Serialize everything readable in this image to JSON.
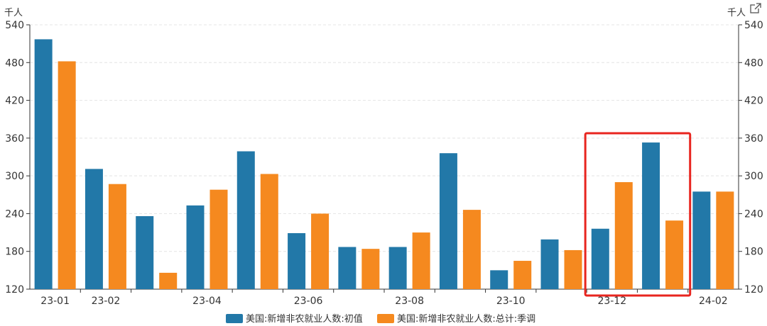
{
  "chart_data": {
    "type": "bar",
    "y_unit_left": "千人",
    "y_unit_right": "千人",
    "ylim": [
      120,
      540
    ],
    "yticks": [
      120,
      180,
      240,
      300,
      360,
      420,
      480,
      540
    ],
    "grid": true,
    "legend_position": "bottom",
    "categories": [
      "23-01",
      "23-02",
      "23-03",
      "23-04",
      "23-05",
      "23-06",
      "23-07",
      "23-08",
      "23-09",
      "23-10",
      "23-11",
      "23-12",
      "24-01",
      "24-02"
    ],
    "x_tick_labels": [
      "23-01",
      "23-02",
      "",
      "23-04",
      "",
      "23-06",
      "",
      "23-08",
      "",
      "23-10",
      "",
      "23-12",
      "",
      "24-02"
    ],
    "series": [
      {
        "name": "美国:新增非农就业人数:初值",
        "color": "#2278a8",
        "values": [
          517,
          311,
          236,
          253,
          339,
          209,
          187,
          187,
          336,
          150,
          199,
          216,
          353,
          275
        ]
      },
      {
        "name": "美国:新增非农就业人数:总计:季调",
        "color": "#f5891f",
        "values": [
          482,
          287,
          146,
          278,
          303,
          240,
          184,
          210,
          246,
          165,
          182,
          290,
          229,
          275
        ]
      }
    ],
    "highlight": {
      "from": "23-12",
      "to": "24-01",
      "color": "#e8251f"
    },
    "share_icon": "external-link-icon"
  }
}
